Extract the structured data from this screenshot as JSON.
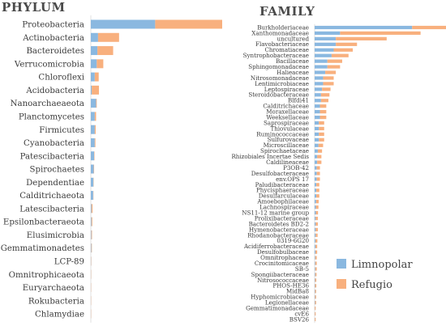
{
  "colors": {
    "limnopolar": "#8ab8e0",
    "refugio": "#f8b07e"
  },
  "legend": {
    "limnopolar_label": "Limnopolar",
    "refugio_label": "Refugio"
  },
  "chart_data": [
    {
      "type": "bar",
      "orientation": "horizontal",
      "stacked": true,
      "title": "PHYLUM",
      "categories": [
        "Proteobacteria",
        "Actinobacteria",
        "Bacteroidetes",
        "Verrucomicrobia",
        "Chloroflexi",
        "Acidobacteria",
        "Nanoarchaeaeota",
        "Planctomycetes",
        "Firmicutes",
        "Cyanobacteria",
        "Patescibacteria",
        "Spirochaetes",
        "Dependentiae",
        "Calditrichaeota",
        "Latescibacteria",
        "Epsilonbacteraeota",
        "Elusimicrobia",
        "Gemmatimonadetes",
        "LCP-89",
        "Omnitrophicaeota",
        "Euryarchaeota",
        "Rokubacteria",
        "Chlamydiae"
      ],
      "series": [
        {
          "name": "Limnopolar",
          "values": [
            49,
            5.5,
            5,
            4.5,
            3,
            0.7,
            4,
            3,
            3,
            3,
            2.5,
            2.2,
            2,
            1.8,
            0.5,
            0.5,
            0.4,
            0.4,
            0.2,
            0.15,
            0.1,
            0.1,
            0.1
          ]
        },
        {
          "name": "Refugio",
          "values": [
            51,
            16,
            12,
            5,
            3,
            5.5,
            0.5,
            1,
            0.7,
            0.5,
            0.3,
            0.3,
            0.2,
            0.2,
            0.8,
            0.6,
            0.5,
            0.4,
            0.2,
            0.15,
            0.1,
            0.1,
            0.1
          ]
        }
      ]
    },
    {
      "type": "bar",
      "orientation": "horizontal",
      "stacked": true,
      "title": "FAMILY",
      "categories": [
        "Burkholderiaceae",
        "Xanthomonadaceae",
        "uncultured",
        "Flavobacteriaceae",
        "Chromatiaceae",
        "Syntrophobacteraceae",
        "Bacillaceae",
        "Sphingomonadaceae",
        "Halieaceae",
        "Nitrosomonadaceae",
        "Lentimicrobiaceae",
        "Leptospiraceae",
        "Steroidobacteraceae",
        "Blfdi41",
        "Calditrichaceae",
        "Moraxellaceae",
        "Weeksellaceae",
        "Saprospiraceae",
        "Thiovulaceae",
        "Ruminococcaceae",
        "Sulfurovaceae",
        "Microscillaceae",
        "Spirochaetaceae",
        "Rhizobiales Incertae Sedis",
        "Caldilineaceae",
        "P3OB-42",
        "Desulfobacteraceae",
        "env.OPS 17",
        "Paludibacteraceae",
        "Phycisphaeraceae",
        "Desulfarculaceae",
        "Amoebophilaceae",
        "Lachnospiraceae",
        "NS11-12 marine group",
        "Prolixibacteraceae",
        "Bacteroidetes BD2-2",
        "Hymenobacteraceae",
        "Rhodanobacteraceae",
        "0319-6G20",
        "Acidiferrobacteraceae",
        "Desulfobulbaceae",
        "Omnitrophaceae",
        "Crocinitomicaceae",
        "SB-5",
        "Spongiibacteraceae",
        "Nitrosococcaceae",
        "PHOS-HE36",
        "MidBa8",
        "Hyphomicrobiaceae",
        "Legionellaceae",
        "Gemmatimonadaceae",
        "cvE6",
        "BSV26"
      ],
      "series": [
        {
          "name": "Limnopolar",
          "values": [
            46,
            12,
            10,
            10,
            9,
            8,
            6,
            6,
            5,
            4,
            4,
            3.5,
            3,
            3,
            2.5,
            2.5,
            2.5,
            2,
            2,
            2,
            2,
            1.8,
            1.5,
            1.2,
            1.2,
            1,
            1,
            1,
            0.8,
            0.8,
            0.8,
            0.7,
            0.6,
            0.6,
            0.5,
            0.5,
            0.5,
            0.5,
            0.4,
            0.4,
            0.4,
            0.3,
            0.3,
            0.3,
            0.3,
            0.2,
            0.2,
            0.2,
            0.2,
            0.2,
            0.1,
            0.1,
            0.1
          ]
        },
        {
          "name": "Refugio",
          "values": [
            16,
            38,
            24,
            10,
            9,
            8,
            7,
            6,
            5,
            5,
            5,
            4,
            4,
            3.5,
            3,
            3,
            3,
            2.5,
            2.5,
            2.5,
            2.5,
            2.2,
            2,
            2,
            2,
            1.5,
            1.5,
            1.5,
            1.4,
            1.4,
            1.4,
            1.2,
            1.2,
            1,
            1,
            1,
            1,
            0.9,
            0.9,
            0.8,
            0.8,
            0.7,
            0.7,
            0.7,
            0.6,
            0.6,
            0.6,
            0.5,
            0.5,
            0.5,
            0.4,
            0.4,
            0.4
          ]
        }
      ]
    }
  ]
}
